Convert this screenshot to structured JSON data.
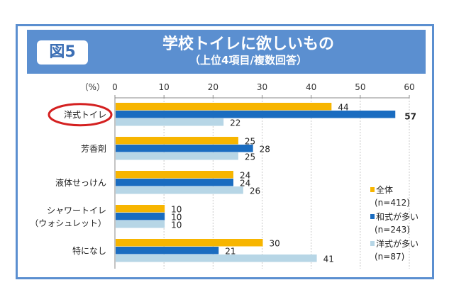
{
  "figure_label": "図5",
  "chart_data": {
    "type": "bar",
    "orientation": "horizontal",
    "title": "学校トイレに欲しいもの",
    "subtitle": "（上位4項目/複数回答）",
    "unit_label": "（%）",
    "xlim": [
      0,
      60
    ],
    "ticks": [
      0,
      10,
      20,
      30,
      40,
      50,
      60
    ],
    "grid": true,
    "categories": [
      "洋式トイレ",
      "芳香剤",
      "液体せっけん",
      "シャワートイレ\n（ウォシュレット）",
      "特になし"
    ],
    "highlighted_category": "洋式トイレ",
    "highlight_color": "#d42020",
    "legend_position": "right",
    "series": [
      {
        "name": "全体",
        "n": "(n=412)",
        "color": "#f7b500",
        "values": [
          44,
          25,
          24,
          10,
          30
        ]
      },
      {
        "name": "和式が多い",
        "n": "(n=243)",
        "color": "#1a6cc0",
        "values": [
          57,
          28,
          24,
          10,
          21
        ]
      },
      {
        "name": "洋式が多い",
        "n": "(n=87)",
        "color": "#b7d6e6",
        "values": [
          22,
          25,
          26,
          10,
          41
        ]
      }
    ]
  }
}
